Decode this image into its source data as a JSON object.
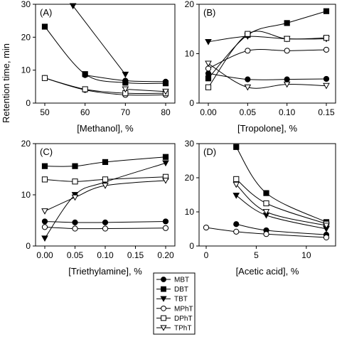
{
  "ylabel": "Retention time, min",
  "legend": [
    {
      "name": "MBT",
      "marker": "circle",
      "filled": true
    },
    {
      "name": "DBT",
      "marker": "square",
      "filled": true
    },
    {
      "name": "TBT",
      "marker": "triangle-down",
      "filled": true
    },
    {
      "name": "MPhT",
      "marker": "circle",
      "filled": false
    },
    {
      "name": "DPhT",
      "marker": "square",
      "filled": false
    },
    {
      "name": "TPhT",
      "marker": "triangle-down",
      "filled": false
    }
  ],
  "chart_data": [
    {
      "type": "line",
      "panel": "(A)",
      "xlabel": "[Methanol], %",
      "xlim": [
        50,
        80
      ],
      "ylim": [
        0,
        30
      ],
      "xticks": [
        "50",
        "60",
        "70",
        "80"
      ],
      "yticks": [
        "0",
        "10",
        "20",
        "30"
      ],
      "series": [
        {
          "name": "MBT",
          "x": [
            60,
            70,
            80
          ],
          "y": [
            8.5,
            6.8,
            6.5
          ]
        },
        {
          "name": "DBT",
          "x": [
            50,
            60,
            70,
            80
          ],
          "y": [
            23.2,
            8.8,
            6.2,
            6.0
          ]
        },
        {
          "name": "TBT",
          "x": [
            57,
            70
          ],
          "y": [
            29.5,
            8.7
          ]
        },
        {
          "name": "MPhT",
          "x": [
            50,
            60,
            70,
            80
          ],
          "y": [
            7.6,
            4.0,
            2.5,
            2.5
          ]
        },
        {
          "name": "DPhT",
          "x": [
            50,
            60,
            70,
            80
          ],
          "y": [
            7.6,
            4.2,
            3.0,
            3.0
          ]
        },
        {
          "name": "TPhT",
          "x": [
            70,
            80
          ],
          "y": [
            4.2,
            3.5
          ]
        }
      ]
    },
    {
      "type": "line",
      "panel": "(B)",
      "xlabel": "[Tropolone], %",
      "xlim": [
        0,
        0.15
      ],
      "ylim": [
        0,
        20
      ],
      "xticks": [
        "0.00",
        "0.05",
        "0.10",
        "0.15"
      ],
      "yticks": [
        "0",
        "10",
        "20"
      ],
      "series": [
        {
          "name": "MBT",
          "x": [
            0,
            0.05,
            0.1,
            0.15
          ],
          "y": [
            6.0,
            4.8,
            4.8,
            4.9
          ]
        },
        {
          "name": "DBT",
          "x": [
            0,
            0.05,
            0.1,
            0.15
          ],
          "y": [
            5.0,
            13.8,
            16.2,
            18.6
          ]
        },
        {
          "name": "TBT",
          "x": [
            0,
            0.05,
            0.1,
            0.15
          ],
          "y": [
            12.4,
            13.5,
            13.0,
            13.0
          ]
        },
        {
          "name": "MPhT",
          "x": [
            0,
            0.05,
            0.1,
            0.15
          ],
          "y": [
            7.0,
            10.6,
            10.6,
            10.8
          ]
        },
        {
          "name": "DPhT",
          "x": [
            0,
            0.05,
            0.1,
            0.15
          ],
          "y": [
            3.2,
            14.0,
            13.0,
            13.2
          ]
        },
        {
          "name": "TPhT",
          "x": [
            0,
            0.05,
            0.1,
            0.15
          ],
          "y": [
            8.0,
            3.2,
            3.8,
            3.5
          ]
        }
      ]
    },
    {
      "type": "line",
      "panel": "(C)",
      "xlabel": "[Triethylamine], %",
      "xlim": [
        0,
        0.2
      ],
      "ylim": [
        0,
        20
      ],
      "xticks": [
        "0.00",
        "0.05",
        "0.10",
        "0.15",
        "0.20"
      ],
      "yticks": [
        "0",
        "10",
        "20"
      ],
      "series": [
        {
          "name": "MBT",
          "x": [
            0,
            0.05,
            0.1,
            0.2
          ],
          "y": [
            4.8,
            4.6,
            4.6,
            4.8
          ]
        },
        {
          "name": "DBT",
          "x": [
            0,
            0.05,
            0.1,
            0.2
          ],
          "y": [
            15.6,
            15.6,
            16.4,
            17.4
          ]
        },
        {
          "name": "TBT",
          "x": [
            0,
            0.05,
            0.1,
            0.2
          ],
          "y": [
            1.5,
            10.0,
            12.5,
            16.2
          ]
        },
        {
          "name": "MPhT",
          "x": [
            0,
            0.05,
            0.1,
            0.2
          ],
          "y": [
            3.7,
            3.4,
            3.4,
            3.5
          ]
        },
        {
          "name": "DPhT",
          "x": [
            0,
            0.05,
            0.1,
            0.2
          ],
          "y": [
            13.0,
            12.6,
            13.0,
            13.5
          ]
        },
        {
          "name": "TPhT",
          "x": [
            0,
            0.05,
            0.1,
            0.2
          ],
          "y": [
            6.8,
            9.5,
            11.8,
            12.8
          ]
        }
      ]
    },
    {
      "type": "line",
      "panel": "(D)",
      "xlabel": "[Acetic acid], %",
      "xlim": [
        0,
        12
      ],
      "ylim": [
        0,
        30
      ],
      "xticks": [
        "0",
        "5",
        "10"
      ],
      "yticks": [
        "0",
        "10",
        "20",
        "30"
      ],
      "series": [
        {
          "name": "MBT",
          "x": [
            3,
            6,
            12
          ],
          "y": [
            6.4,
            4.6,
            3.3
          ]
        },
        {
          "name": "DBT",
          "x": [
            3,
            6,
            12
          ],
          "y": [
            29.0,
            15.5,
            7.0
          ]
        },
        {
          "name": "TBT",
          "x": [
            3,
            6,
            12
          ],
          "y": [
            14.8,
            9.0,
            5.0
          ]
        },
        {
          "name": "MPhT",
          "x": [
            0,
            3,
            6,
            12
          ],
          "y": [
            5.4,
            4.2,
            3.5,
            2.5
          ]
        },
        {
          "name": "DPhT",
          "x": [
            3,
            6,
            12
          ],
          "y": [
            19.6,
            12.5,
            6.5
          ]
        },
        {
          "name": "TPhT",
          "x": [
            3,
            6,
            12
          ],
          "y": [
            18.0,
            10.0,
            6.0
          ]
        }
      ]
    }
  ]
}
